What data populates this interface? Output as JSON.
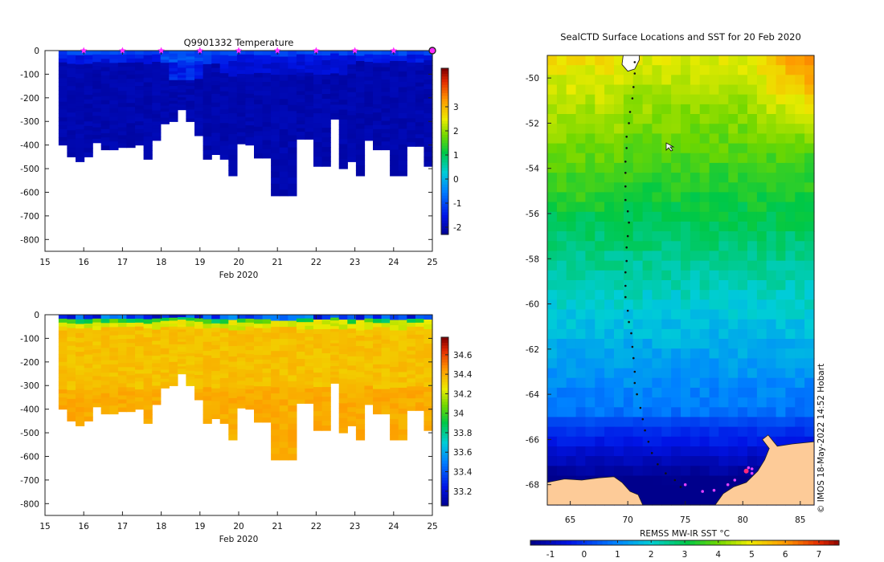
{
  "chart_data": [
    {
      "type": "heatmap",
      "title": "Q9901332  Temperature",
      "xlabel": "Feb 2020",
      "ylabel": "",
      "x_ticks": [
        "15",
        "16",
        "17",
        "18",
        "19",
        "20",
        "21",
        "22",
        "23",
        "24",
        "25"
      ],
      "xlim": [
        15,
        25
      ],
      "y_ticks": [
        "0",
        "-100",
        "-200",
        "-300",
        "-400",
        "-500",
        "-600",
        "-700",
        "-800"
      ],
      "ylim": [
        -850,
        0
      ],
      "colorbar": {
        "ticks": [
          "-2",
          "-1",
          "0",
          "1",
          "2",
          "3"
        ],
        "range": [
          -2.3,
          4.6
        ]
      },
      "profile_marker_days": [
        16,
        17,
        18,
        19,
        20,
        21,
        22,
        23,
        24
      ],
      "last_profile_day": 25,
      "profile_bottom_depths_m": [
        -400,
        -450,
        -470,
        -450,
        -390,
        -420,
        -420,
        -410,
        -410,
        -400,
        -460,
        -380,
        -310,
        -300,
        -250,
        -300,
        -360,
        -460,
        -440,
        -460,
        -530,
        -395,
        -400,
        -455,
        -455,
        -615,
        -615,
        -615,
        -375,
        -375,
        -490,
        -490,
        -290,
        -500,
        -470,
        -530,
        -380,
        -420,
        -420,
        -530,
        -530,
        -405,
        -405,
        -490
      ]
    },
    {
      "type": "heatmap",
      "title": "",
      "xlabel": "Feb 2020",
      "ylabel": "",
      "x_ticks": [
        "15",
        "16",
        "17",
        "18",
        "19",
        "20",
        "21",
        "22",
        "23",
        "24",
        "25"
      ],
      "xlim": [
        15,
        25
      ],
      "y_ticks": [
        "0",
        "-100",
        "-200",
        "-300",
        "-400",
        "-500",
        "-600",
        "-700",
        "-800"
      ],
      "ylim": [
        -850,
        0
      ],
      "colorbar": {
        "ticks": [
          "33.2",
          "33.4",
          "33.6",
          "33.8",
          "34",
          "34.2",
          "34.4",
          "34.6"
        ],
        "range": [
          33.05,
          34.78
        ]
      }
    },
    {
      "type": "heatmap",
      "title": "SealCTD Surface Locations and SST for 20 Feb 2020",
      "xlabel": "",
      "ylabel": "",
      "x_ticks": [
        "65",
        "70",
        "75",
        "80",
        "85"
      ],
      "xlim": [
        63,
        86.2
      ],
      "y_ticks": [
        "-50",
        "-52",
        "-54",
        "-56",
        "-58",
        "-60",
        "-62",
        "-64",
        "-66",
        "-68"
      ],
      "ylim": [
        -68.9,
        -49
      ],
      "colorbar": {
        "label": "REMSS MW-IR SST °C",
        "ticks": [
          "-1",
          "0",
          "1",
          "2",
          "3",
          "4",
          "5",
          "6",
          "7"
        ],
        "range": [
          -1.6,
          7.6
        ]
      },
      "track_lon_lat": [
        [
          70.6,
          -49.3
        ],
        [
          70.6,
          -49.8
        ],
        [
          70.5,
          -50.4
        ],
        [
          70.4,
          -50.9
        ],
        [
          70.2,
          -51.5
        ],
        [
          70.1,
          -52.0
        ],
        [
          69.9,
          -52.6
        ],
        [
          69.9,
          -53.1
        ],
        [
          69.8,
          -53.7
        ],
        [
          69.8,
          -54.2
        ],
        [
          69.8,
          -54.8
        ],
        [
          69.8,
          -55.4
        ],
        [
          70.0,
          -55.9
        ],
        [
          70.1,
          -56.4
        ],
        [
          70.0,
          -57.0
        ],
        [
          69.9,
          -57.5
        ],
        [
          69.9,
          -58.1
        ],
        [
          69.8,
          -58.6
        ],
        [
          69.8,
          -59.2
        ],
        [
          69.8,
          -59.7
        ],
        [
          70.0,
          -60.3
        ],
        [
          70.1,
          -60.8
        ],
        [
          70.3,
          -61.3
        ],
        [
          70.4,
          -61.9
        ],
        [
          70.5,
          -62.4
        ],
        [
          70.6,
          -63.0
        ],
        [
          70.6,
          -63.5
        ],
        [
          70.8,
          -64.0
        ],
        [
          71.1,
          -64.6
        ],
        [
          71.3,
          -65.1
        ],
        [
          71.5,
          -65.6
        ],
        [
          71.8,
          -66.1
        ],
        [
          72.1,
          -66.6
        ],
        [
          72.6,
          -67.1
        ],
        [
          73.3,
          -67.5
        ],
        [
          74.1,
          -67.8
        ],
        [
          74.6,
          -68.1
        ]
      ],
      "recent_positions_lon_lat": [
        [
          75.0,
          -68.0
        ],
        [
          76.5,
          -68.3
        ],
        [
          77.5,
          -68.25
        ],
        [
          78.7,
          -68.0
        ],
        [
          79.3,
          -67.8
        ],
        [
          80.3,
          -67.4
        ],
        [
          80.8,
          -67.3
        ],
        [
          80.8,
          -67.5
        ],
        [
          80.5,
          -67.25
        ]
      ],
      "credit": "© IMOS 18-May-2022 14:52 Hobart"
    }
  ]
}
